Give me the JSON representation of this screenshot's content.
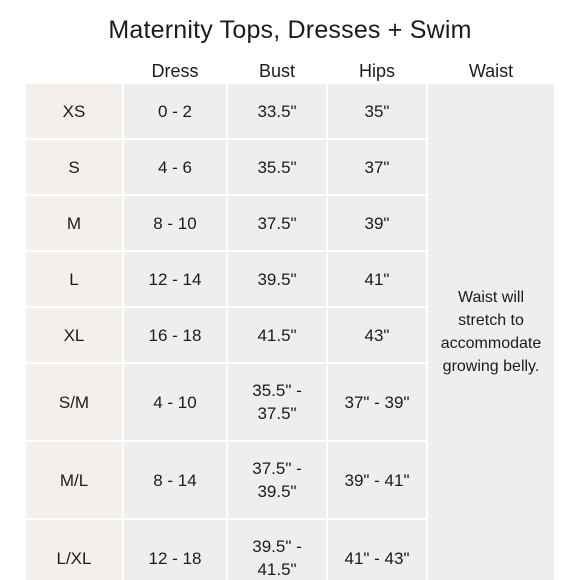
{
  "title": "Maternity Tops, Dresses + Swim",
  "columns": {
    "size": "",
    "dress": "Dress",
    "bust": "Bust",
    "hips": "Hips",
    "waist": "Waist"
  },
  "rows": [
    {
      "size": "XS",
      "dress": "0 - 2",
      "bust": "33.5\"",
      "hips": "35\""
    },
    {
      "size": "S",
      "dress": "4 - 6",
      "bust": "35.5\"",
      "hips": "37\""
    },
    {
      "size": "M",
      "dress": "8 - 10",
      "bust": "37.5\"",
      "hips": "39\""
    },
    {
      "size": "L",
      "dress": "12 - 14",
      "bust": "39.5\"",
      "hips": "41\""
    },
    {
      "size": "XL",
      "dress": "16 - 18",
      "bust": "41.5\"",
      "hips": "43\""
    },
    {
      "size": "S/M",
      "dress": "4 - 10",
      "bust": "35.5\" - 37.5\"",
      "hips": "37\" - 39\""
    },
    {
      "size": "M/L",
      "dress": "8 - 14",
      "bust": "37.5\" - 39.5\"",
      "hips": "39\" - 41\""
    },
    {
      "size": "L/XL",
      "dress": "12 - 18",
      "bust": "39.5\" - 41.5\"",
      "hips": "41\" - 43\""
    }
  ],
  "waist_note": "Waist will stretch to accommodate growing belly."
}
